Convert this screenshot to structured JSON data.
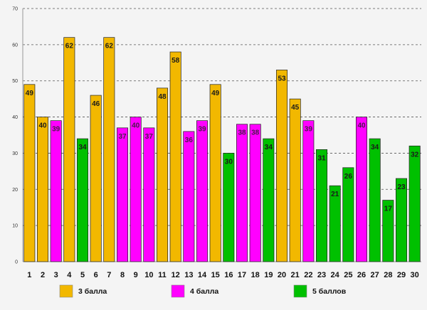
{
  "chart_data": {
    "type": "bar",
    "title": "",
    "xlabel": "",
    "ylabel": "",
    "ylim": [
      0,
      70
    ],
    "y_ticks": [
      0,
      10,
      20,
      30,
      40,
      50,
      60,
      70
    ],
    "grid": true,
    "legend_position": "bottom",
    "categories": [
      "1",
      "2",
      "3",
      "4",
      "5",
      "6",
      "7",
      "8",
      "9",
      "10",
      "11",
      "12",
      "13",
      "14",
      "15",
      "16",
      "17",
      "18",
      "19",
      "20",
      "21",
      "22",
      "23",
      "24",
      "25",
      "26",
      "27",
      "28",
      "29",
      "30"
    ],
    "values": [
      49,
      40,
      39,
      62,
      34,
      46,
      62,
      37,
      40,
      37,
      48,
      58,
      36,
      39,
      49,
      30,
      38,
      38,
      34,
      53,
      45,
      39,
      31,
      21,
      26,
      40,
      34,
      17,
      23,
      32
    ],
    "groups": [
      "3",
      "3",
      "4",
      "3",
      "5",
      "3",
      "3",
      "4",
      "4",
      "4",
      "3",
      "3",
      "4",
      "4",
      "3",
      "5",
      "4",
      "4",
      "5",
      "3",
      "3",
      "4",
      "5",
      "5",
      "5",
      "4",
      "5",
      "5",
      "5",
      "5"
    ],
    "series": [
      {
        "key": "3",
        "name": "3 балла",
        "color": "#f2b800"
      },
      {
        "key": "4",
        "name": "4 балла",
        "color": "#ff00ff"
      },
      {
        "key": "5",
        "name": "5 баллов",
        "color": "#00c000"
      }
    ]
  }
}
